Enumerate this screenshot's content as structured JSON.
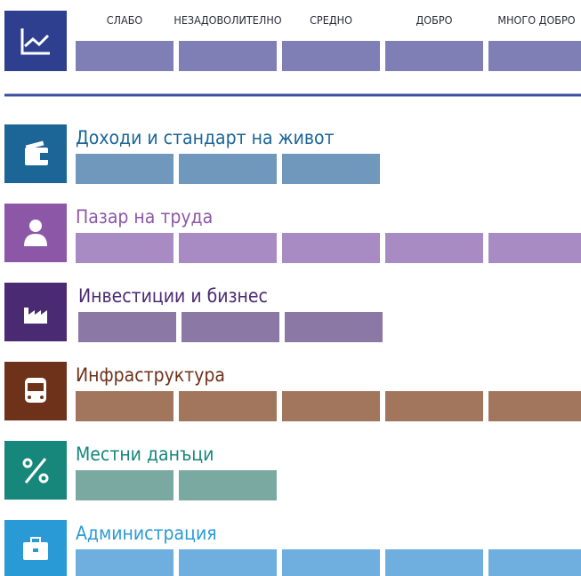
{
  "chart_data": {
    "type": "rating",
    "scale": [
      "СЛАБО",
      "НЕЗАДОВОЛИТЕЛНО",
      "СРЕДНО",
      "ДОБРО",
      "МНОГО ДОБРО"
    ],
    "scale_color": "#7f7fb5",
    "categories": [
      "Доходи и стандарт на живот",
      "Пазар на труда",
      "Инвестиции и бизнес",
      "Инфраструктура",
      "Местни данъци",
      "Администрация"
    ],
    "values": [
      3,
      5,
      3,
      5,
      2,
      5
    ],
    "icon_colors": [
      "#1b6597",
      "#8d57a7",
      "#4a2a73",
      "#6e3119",
      "#16877a",
      "#2a9ad6"
    ],
    "colors": [
      "#7098bd",
      "#a98bc4",
      "#8b78a4",
      "#a2765c",
      "#7aa9a2",
      "#6fafe0"
    ]
  }
}
